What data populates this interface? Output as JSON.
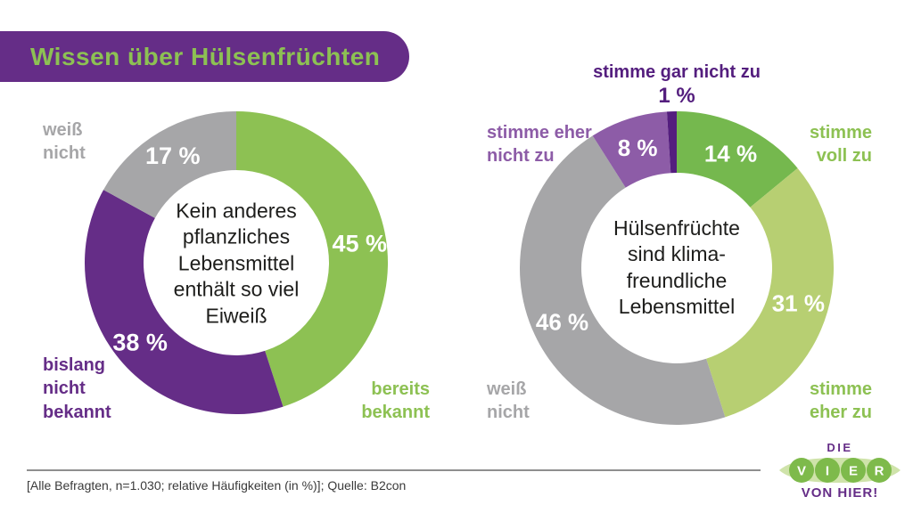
{
  "title": {
    "text": "Wissen über Hülsenfrüchten",
    "bar_color": "#652d87",
    "text_color": "#8dc153"
  },
  "chart_data": [
    {
      "type": "pie",
      "variant": "donut",
      "title": "Kein anderes pflanzliches Lebensmittel enthält so viel Eiweiß",
      "center_lines": [
        "Kein anderes",
        "pflanzliches",
        "Lebensmittel",
        "enthält so viel",
        "Eiweiß"
      ],
      "unit": "%",
      "start_angle_deg": 0,
      "direction": "clockwise",
      "categories": [
        "bereits bekannt",
        "bislang nicht bekannt",
        "weiß nicht"
      ],
      "values": [
        45,
        38,
        17
      ],
      "slices": [
        {
          "label": "bereits bekannt",
          "value": 45,
          "pct_label": "45 %",
          "color": "#8dc153",
          "label_color": "#8dc153"
        },
        {
          "label": "bislang nicht bekannt",
          "value": 38,
          "pct_label": "38 %",
          "color": "#652d87",
          "label_color": "#652d87"
        },
        {
          "label": "weiß nicht",
          "value": 17,
          "pct_label": "17 %",
          "color": "#a6a6a8",
          "label_color": "#a6a6a8"
        }
      ]
    },
    {
      "type": "pie",
      "variant": "donut",
      "title": "Hülsenfrüchte sind klimafreundliche Lebensmittel",
      "center_lines": [
        "Hülsenfrüchte",
        "sind klima-",
        "freundliche",
        "Lebensmittel"
      ],
      "unit": "%",
      "start_angle_deg": 0,
      "direction": "clockwise",
      "categories": [
        "stimme voll zu",
        "stimme eher zu",
        "weiß nicht",
        "stimme eher nicht zu",
        "stimme gar nicht zu"
      ],
      "values": [
        14,
        31,
        46,
        8,
        1
      ],
      "slices": [
        {
          "label": "stimme voll zu",
          "value": 14,
          "pct_label": "14 %",
          "color": "#75b84e",
          "label_color": "#8dc153"
        },
        {
          "label": "stimme eher zu",
          "value": 31,
          "pct_label": "31 %",
          "color": "#b7cf72",
          "label_color": "#8dc153"
        },
        {
          "label": "weiß nicht",
          "value": 46,
          "pct_label": "46 %",
          "color": "#a6a6a8",
          "label_color": "#a6a6a8"
        },
        {
          "label": "stimme eher nicht zu",
          "value": 8,
          "pct_label": "8 %",
          "color": "#8d5ca7",
          "label_color": "#8d5ca7"
        },
        {
          "label": "stimme gar nicht zu",
          "value": 1,
          "pct_label": "1 %",
          "color": "#541e7e",
          "label_color": "#541e7e",
          "pct_outside": true
        }
      ]
    }
  ],
  "footnote": "[Alle Befragten, n=1.030; relative Häufigkeiten (in %)]; Quelle: B2con",
  "logo": {
    "top": "DIE",
    "letters": [
      "V",
      "I",
      "E",
      "R"
    ],
    "bottom": "VON HIER!",
    "pod_color": "#cfe3aa",
    "circle_color": "#7eba4b",
    "letter_color": "#ffffff",
    "text_color": "#652d87"
  }
}
